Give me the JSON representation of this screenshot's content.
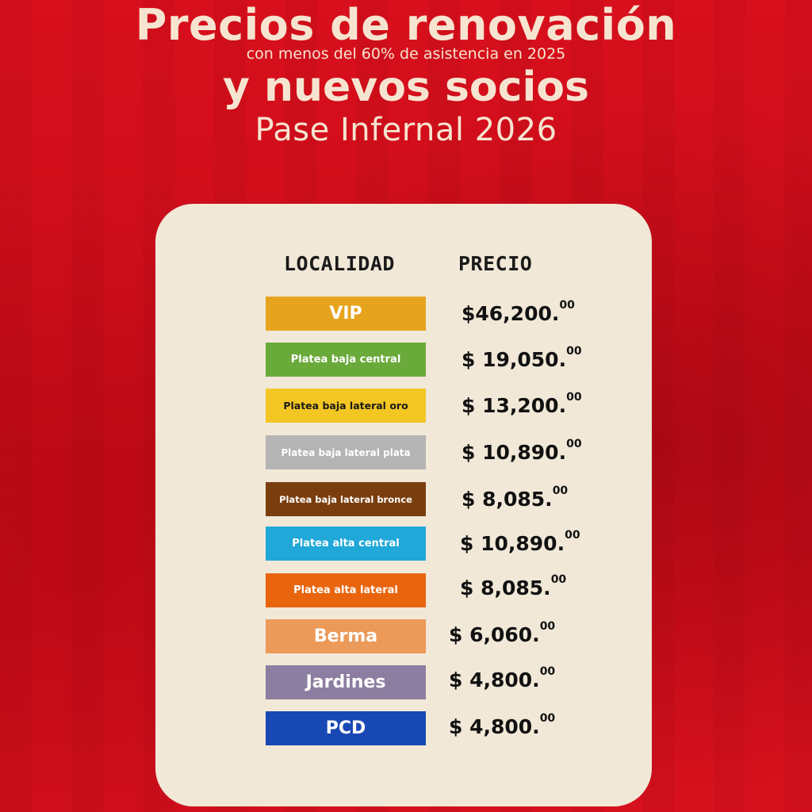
{
  "header": {
    "title_line1": "Precios de renovación",
    "subtitle": "con menos del 60% de asistencia en 2025",
    "title_line2": "y nuevos socios",
    "title_line3": "Pase Infernal 2026"
  },
  "table": {
    "col_localidad": "LOCALIDAD",
    "col_precio": "PRECIO",
    "rows": [
      {
        "label": "VIP",
        "price_main": "$46,200.",
        "price_cents": "00",
        "bg": "#e6a41e",
        "fg": "#ffffff"
      },
      {
        "label": "Platea baja central",
        "price_main": "$ 19,050.",
        "price_cents": "00",
        "bg": "#6aaa3a",
        "fg": "#ffffff"
      },
      {
        "label": "Platea baja lateral oro",
        "price_main": "$ 13,200.",
        "price_cents": "00",
        "bg": "#f3c623",
        "fg": "#1a1a1a"
      },
      {
        "label": "Platea baja lateral plata",
        "price_main": "$ 10,890.",
        "price_cents": "00",
        "bg": "#b4b4b4",
        "fg": "#ffffff"
      },
      {
        "label": "Platea baja lateral bronce",
        "price_main": "$ 8,085.",
        "price_cents": "00",
        "bg": "#7a3e0e",
        "fg": "#ffffff"
      },
      {
        "label": "Platea alta central",
        "price_main": "$ 10,890.",
        "price_cents": "00",
        "bg": "#1fa8d8",
        "fg": "#ffffff"
      },
      {
        "label": "Platea alta lateral",
        "price_main": "$ 8,085.",
        "price_cents": "00",
        "bg": "#e8650e",
        "fg": "#ffffff"
      },
      {
        "label": "Berma",
        "price_main": "$ 6,060.",
        "price_cents": "00",
        "bg": "#eb9a5a",
        "fg": "#ffffff"
      },
      {
        "label": "Jardines",
        "price_main": "$ 4,800.",
        "price_cents": "00",
        "bg": "#8c7ea0",
        "fg": "#ffffff"
      },
      {
        "label": "PCD",
        "price_main": "$ 4,800.",
        "price_cents": "00",
        "bg": "#1848b4",
        "fg": "#ffffff"
      }
    ]
  }
}
